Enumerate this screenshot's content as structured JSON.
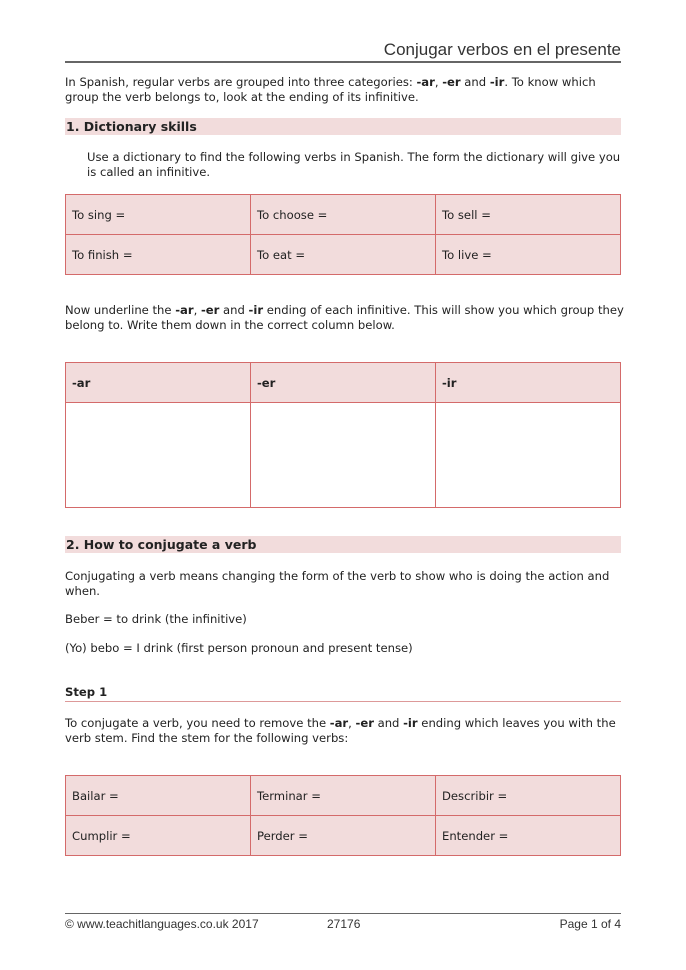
{
  "header": {
    "title": "Conjugar verbos en el presente"
  },
  "intro": {
    "text_a": "In Spanish, regular verbs are grouped into three categories: ",
    "ar": "-ar",
    "sep1": ", ",
    "er": "-er",
    "sep2": " and ",
    "ir": "-ir",
    "text_b": ". To know which group the verb belongs to, look at the ending of its infinitive."
  },
  "section1": {
    "heading": "1.  Dictionary skills",
    "instruction": "Use a dictionary to find the following verbs in Spanish. The form the dictionary will give you is called an infinitive.",
    "table": [
      [
        "To sing =",
        "To choose =",
        "To sell ="
      ],
      [
        "To finish =",
        "To eat =",
        "To live ="
      ]
    ],
    "underline_a": "Now underline the ",
    "ar": "-ar",
    "sep1": ", ",
    "er": "-er",
    "sep2": " and ",
    "ir": "-ir",
    "underline_b": " ending of each infinitive. This will show you which group they belong to. Write them down in the correct column below.",
    "columns": [
      "-ar",
      "-er",
      "-ir"
    ]
  },
  "section2": {
    "heading": "2.  How to conjugate a verb",
    "p1": "Conjugating a verb means changing the form of the verb to show who is doing the action and when.",
    "p2": "Beber = to drink (the infinitive)",
    "p3": "(Yo) bebo = I drink (first person pronoun and present tense)",
    "step": "Step 1",
    "step_a": "To conjugate a verb, you need to remove the ",
    "ar": "-ar",
    "sep1": ", ",
    "er": "-er",
    "sep2": " and ",
    "ir": "-ir",
    "step_b": " ending which leaves you with the verb stem. Find the stem for the following verbs:",
    "table": [
      [
        "Bailar =",
        "Terminar =",
        "Describir ="
      ],
      [
        "Cumplir =",
        "Perder =",
        "Entender ="
      ]
    ]
  },
  "footer": {
    "copyright": "© www.teachitlanguages.co.uk 2017",
    "code": "27176",
    "page": "Page 1 of 4"
  }
}
